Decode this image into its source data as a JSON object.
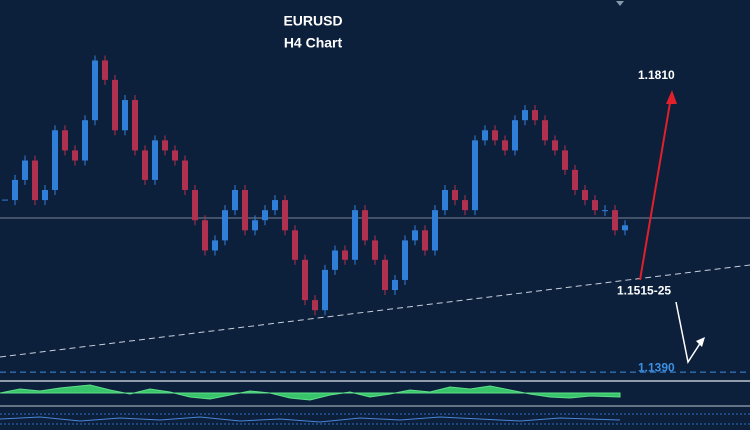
{
  "chart_data": {
    "type": "candlestick",
    "title": "EURUSD",
    "subtitle": "H4 Chart",
    "ylim": [
      1.1379,
      1.1907
    ],
    "up_color": "#2f7fd8",
    "down_color": "#b0304f",
    "values": [
      1.1629,
      1.1657,
      1.1684,
      1.1629,
      1.1643,
      1.1726,
      1.1698,
      1.1684,
      1.174,
      1.1823,
      1.1796,
      1.1726,
      1.1768,
      1.1698,
      1.1657,
      1.1712,
      1.1698,
      1.1684,
      1.1643,
      1.1601,
      1.1559,
      1.1573,
      1.1615,
      1.1643,
      1.1587,
      1.1601,
      1.1615,
      1.1629,
      1.1587,
      1.1546,
      1.149,
      1.1476,
      1.1532,
      1.1559,
      1.1546,
      1.1615,
      1.1573,
      1.1546,
      1.1504,
      1.1518,
      1.1573,
      1.1587,
      1.1559,
      1.1615,
      1.1643,
      1.1629,
      1.1615,
      1.1712,
      1.1726,
      1.1712,
      1.1698,
      1.174,
      1.1754,
      1.174,
      1.1712,
      1.1698,
      1.1671,
      1.1643,
      1.1629,
      1.1615,
      1.1615,
      1.1587,
      1.1594
    ],
    "levels": [
      {
        "value": 1.181,
        "label": "1.1810"
      },
      {
        "value": 1.1515,
        "label": "1.1515-25"
      },
      {
        "value": 1.139,
        "label": "1.1390"
      }
    ],
    "level_colors": [
      "#ffffff",
      "#ffffff",
      "#3d8fe0"
    ]
  }
}
